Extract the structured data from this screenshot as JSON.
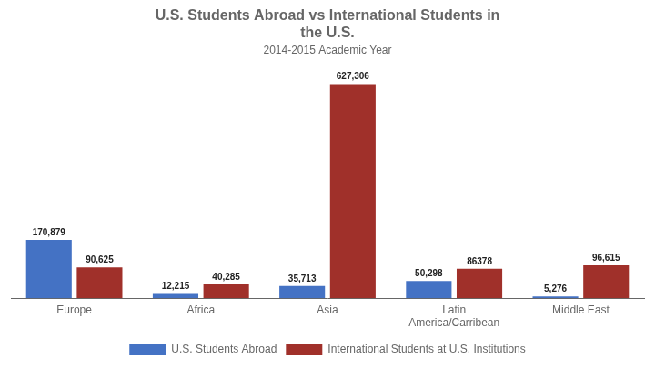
{
  "chart_data": {
    "type": "bar",
    "title": "U.S. Students Abroad vs International Students in\nthe U.S.",
    "subtitle": "2014-2015 Academic Year",
    "categories": [
      "Europe",
      "Africa",
      "Asia",
      "Latin\nAmerica/Carribean",
      "Middle East"
    ],
    "series": [
      {
        "name": "U.S. Students Abroad",
        "color": "#4472C4",
        "values": [
          170879,
          12215,
          35713,
          50298,
          5276
        ],
        "value_labels": [
          "170,879",
          "12,215",
          "35,713",
          "50,298",
          "5,276"
        ]
      },
      {
        "name": "International Students at U.S. Institutions",
        "color": "#A0302A",
        "values": [
          90625,
          40285,
          627306,
          86378,
          96615
        ],
        "value_labels": [
          "90,625",
          "40,285",
          "627,306",
          "86378",
          "96,615"
        ]
      }
    ],
    "ylim": [
      0,
      680000
    ],
    "grid": false,
    "legend": "bottom",
    "data_labels": true,
    "tick_labels": "x"
  }
}
